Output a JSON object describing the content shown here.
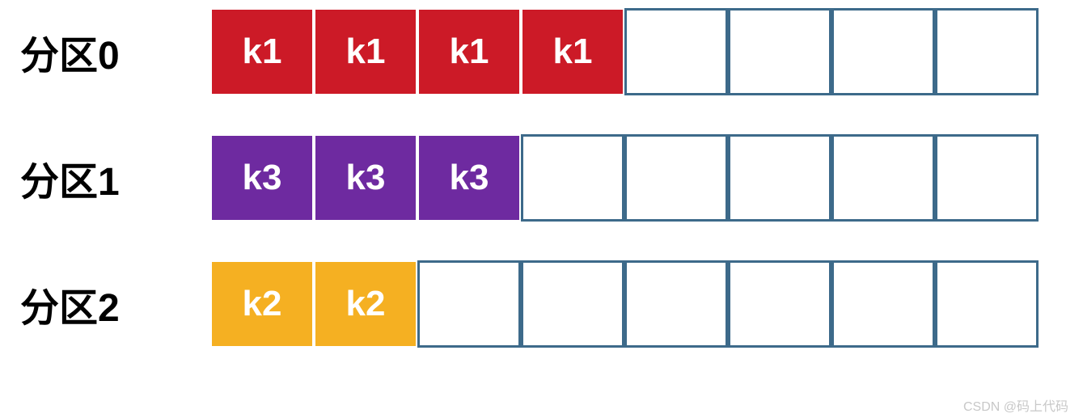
{
  "diagram": {
    "total_cells_per_row": 8,
    "cell_text_color": "#ffffff",
    "empty_cell_bg": "#ffffff",
    "empty_border_color": "#3d6a8a",
    "partitions": [
      {
        "label": "分区0",
        "key": "k1",
        "filled_count": 4,
        "fill_color": "#cc1a27"
      },
      {
        "label": "分区1",
        "key": "k3",
        "filled_count": 3,
        "fill_color": "#6e2aa0"
      },
      {
        "label": "分区2",
        "key": "k2",
        "filled_count": 2,
        "fill_color": "#f5b022"
      }
    ]
  },
  "watermark": "CSDN @码上代码"
}
